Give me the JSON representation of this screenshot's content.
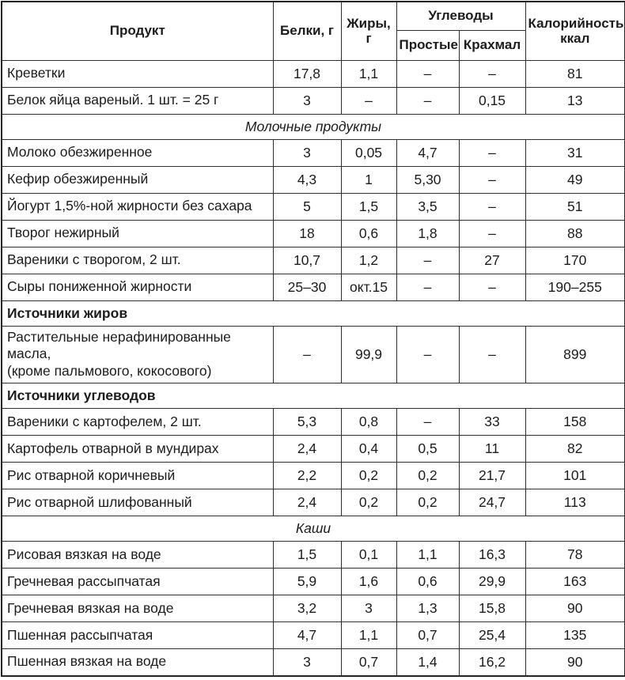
{
  "table": {
    "border_color": "#2e2e2e",
    "text_color": "#1c1c1c",
    "header": {
      "product": "Продукт",
      "protein": "Белки, г",
      "fat": "Жиры, г",
      "carbs_group": "Углеводы",
      "carbs_simple": "Простые",
      "carbs_starch": "Крахмал",
      "calories": "Калорийность,\nккал"
    },
    "rows": [
      {
        "type": "data",
        "product": "Креветки",
        "values": [
          "17,8",
          "1,1",
          "–",
          "–",
          "81"
        ]
      },
      {
        "type": "data",
        "product": "Белок яйца вареный. 1 шт. = 25 г",
        "values": [
          "3",
          "–",
          "–",
          "0,15",
          "13"
        ]
      },
      {
        "type": "section_center",
        "label": "Молочные продукты"
      },
      {
        "type": "data",
        "product": "Молоко обезжиренное",
        "values": [
          "3",
          "0,05",
          "4,7",
          "–",
          "31"
        ]
      },
      {
        "type": "data",
        "product": "Кефир обезжиренный",
        "values": [
          "4,3",
          "1",
          "5,30",
          "–",
          "49"
        ]
      },
      {
        "type": "data",
        "product": "Йогурт 1,5%-ной жирности без сахара",
        "values": [
          "5",
          "1,5",
          "3,5",
          "–",
          "51"
        ]
      },
      {
        "type": "data",
        "product": "Творог нежирный",
        "values": [
          "18",
          "0,6",
          "1,8",
          "–",
          "88"
        ]
      },
      {
        "type": "data",
        "product": "Вареники с творогом, 2 шт.",
        "values": [
          "10,7",
          "1,2",
          "–",
          "27",
          "170"
        ]
      },
      {
        "type": "data",
        "product": "Сыры пониженной жирности",
        "values": [
          "25–30",
          "окт.15",
          "–",
          "–",
          "190–255"
        ]
      },
      {
        "type": "section_left",
        "label": "Источники жиров"
      },
      {
        "type": "data",
        "tall": true,
        "product": "Растительные нерафинированные масла,\n(кроме пальмового, кокосового)",
        "values": [
          "–",
          "99,9",
          "–",
          "–",
          "899"
        ]
      },
      {
        "type": "section_left",
        "label": "Источники углеводов"
      },
      {
        "type": "data",
        "product": "Вареники с картофелем, 2 шт.",
        "values": [
          "5,3",
          "0,8",
          "–",
          "33",
          "158"
        ]
      },
      {
        "type": "data",
        "product": "Картофель отварной в мундирах",
        "values": [
          "2,4",
          "0,4",
          "0,5",
          "11",
          "82"
        ]
      },
      {
        "type": "data",
        "product": "Рис отварной коричневый",
        "values": [
          "2,2",
          "0,2",
          "0,2",
          "21,7",
          "101"
        ]
      },
      {
        "type": "data",
        "product": "Рис отварной шлифованный",
        "values": [
          "2,4",
          "0,2",
          "0,2",
          "24,7",
          "113"
        ]
      },
      {
        "type": "section_center",
        "label": "Каши"
      },
      {
        "type": "data",
        "product": "Рисовая вязкая на воде",
        "values": [
          "1,5",
          "0,1",
          "1,1",
          "16,3",
          "78"
        ]
      },
      {
        "type": "data",
        "product": "Гречневая рассыпчатая",
        "values": [
          "5,9",
          "1,6",
          "0,6",
          "29,9",
          "163"
        ]
      },
      {
        "type": "data",
        "product": "Гречневая вязкая на воде",
        "values": [
          "3,2",
          "3",
          "1,3",
          "15,8",
          "90"
        ]
      },
      {
        "type": "data",
        "product": "Пшенная рассыпчатая",
        "values": [
          "4,7",
          "1,1",
          "0,7",
          "25,4",
          "135"
        ]
      },
      {
        "type": "data",
        "product": "Пшенная вязкая на воде",
        "values": [
          "3",
          "0,7",
          "1,4",
          "16,2",
          "90"
        ]
      }
    ]
  }
}
